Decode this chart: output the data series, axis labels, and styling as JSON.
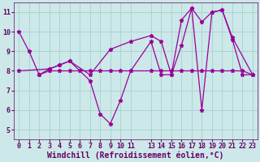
{
  "xlabel": "Windchill (Refroidissement éolien,°C)",
  "bg_color": "#cce8e8",
  "grid_color": "#aad4d4",
  "line_color": "#990099",
  "axis_bg": "#7700aa",
  "xlim": [
    -0.5,
    23.5
  ],
  "ylim": [
    4.5,
    11.5
  ],
  "xticks": [
    0,
    1,
    2,
    3,
    4,
    5,
    6,
    7,
    8,
    9,
    10,
    11,
    13,
    14,
    15,
    16,
    17,
    18,
    19,
    20,
    21,
    22,
    23
  ],
  "yticks": [
    5,
    6,
    7,
    8,
    9,
    10,
    11
  ],
  "line1_x": [
    0,
    1,
    2,
    3,
    4,
    5,
    7,
    8,
    9,
    10,
    11,
    13,
    14,
    15,
    16,
    17,
    18,
    19,
    20,
    21,
    22,
    23
  ],
  "line1_y": [
    10.0,
    9.0,
    7.8,
    8.1,
    8.3,
    8.5,
    7.5,
    5.8,
    5.3,
    6.5,
    8.0,
    9.5,
    7.8,
    7.8,
    9.3,
    11.2,
    6.0,
    11.0,
    11.1,
    9.6,
    7.8,
    7.8
  ],
  "line2_x": [
    2,
    3,
    4,
    5,
    6,
    7,
    8,
    9,
    10,
    11,
    13,
    14,
    15,
    16,
    17,
    18,
    19,
    20,
    21,
    22,
    23
  ],
  "line2_y": [
    7.8,
    8.0,
    8.0,
    8.0,
    8.0,
    8.0,
    8.0,
    8.0,
    8.0,
    8.0,
    8.0,
    8.0,
    8.0,
    8.0,
    8.0,
    8.0,
    8.0,
    8.0,
    8.0,
    8.0,
    7.8
  ],
  "line3_x": [
    0,
    3,
    4,
    5,
    7,
    9,
    11,
    13,
    14,
    15,
    16,
    17,
    18,
    19,
    20,
    21,
    23
  ],
  "line3_y": [
    8.0,
    8.1,
    8.3,
    8.5,
    7.8,
    9.1,
    9.5,
    9.8,
    9.5,
    7.8,
    10.6,
    11.2,
    10.5,
    11.0,
    11.1,
    9.7,
    7.8
  ],
  "marker": "*",
  "markersize": 3.5,
  "linewidth": 0.9,
  "xlabel_fontsize": 7,
  "tick_fontsize": 6,
  "label_color": "#660066"
}
